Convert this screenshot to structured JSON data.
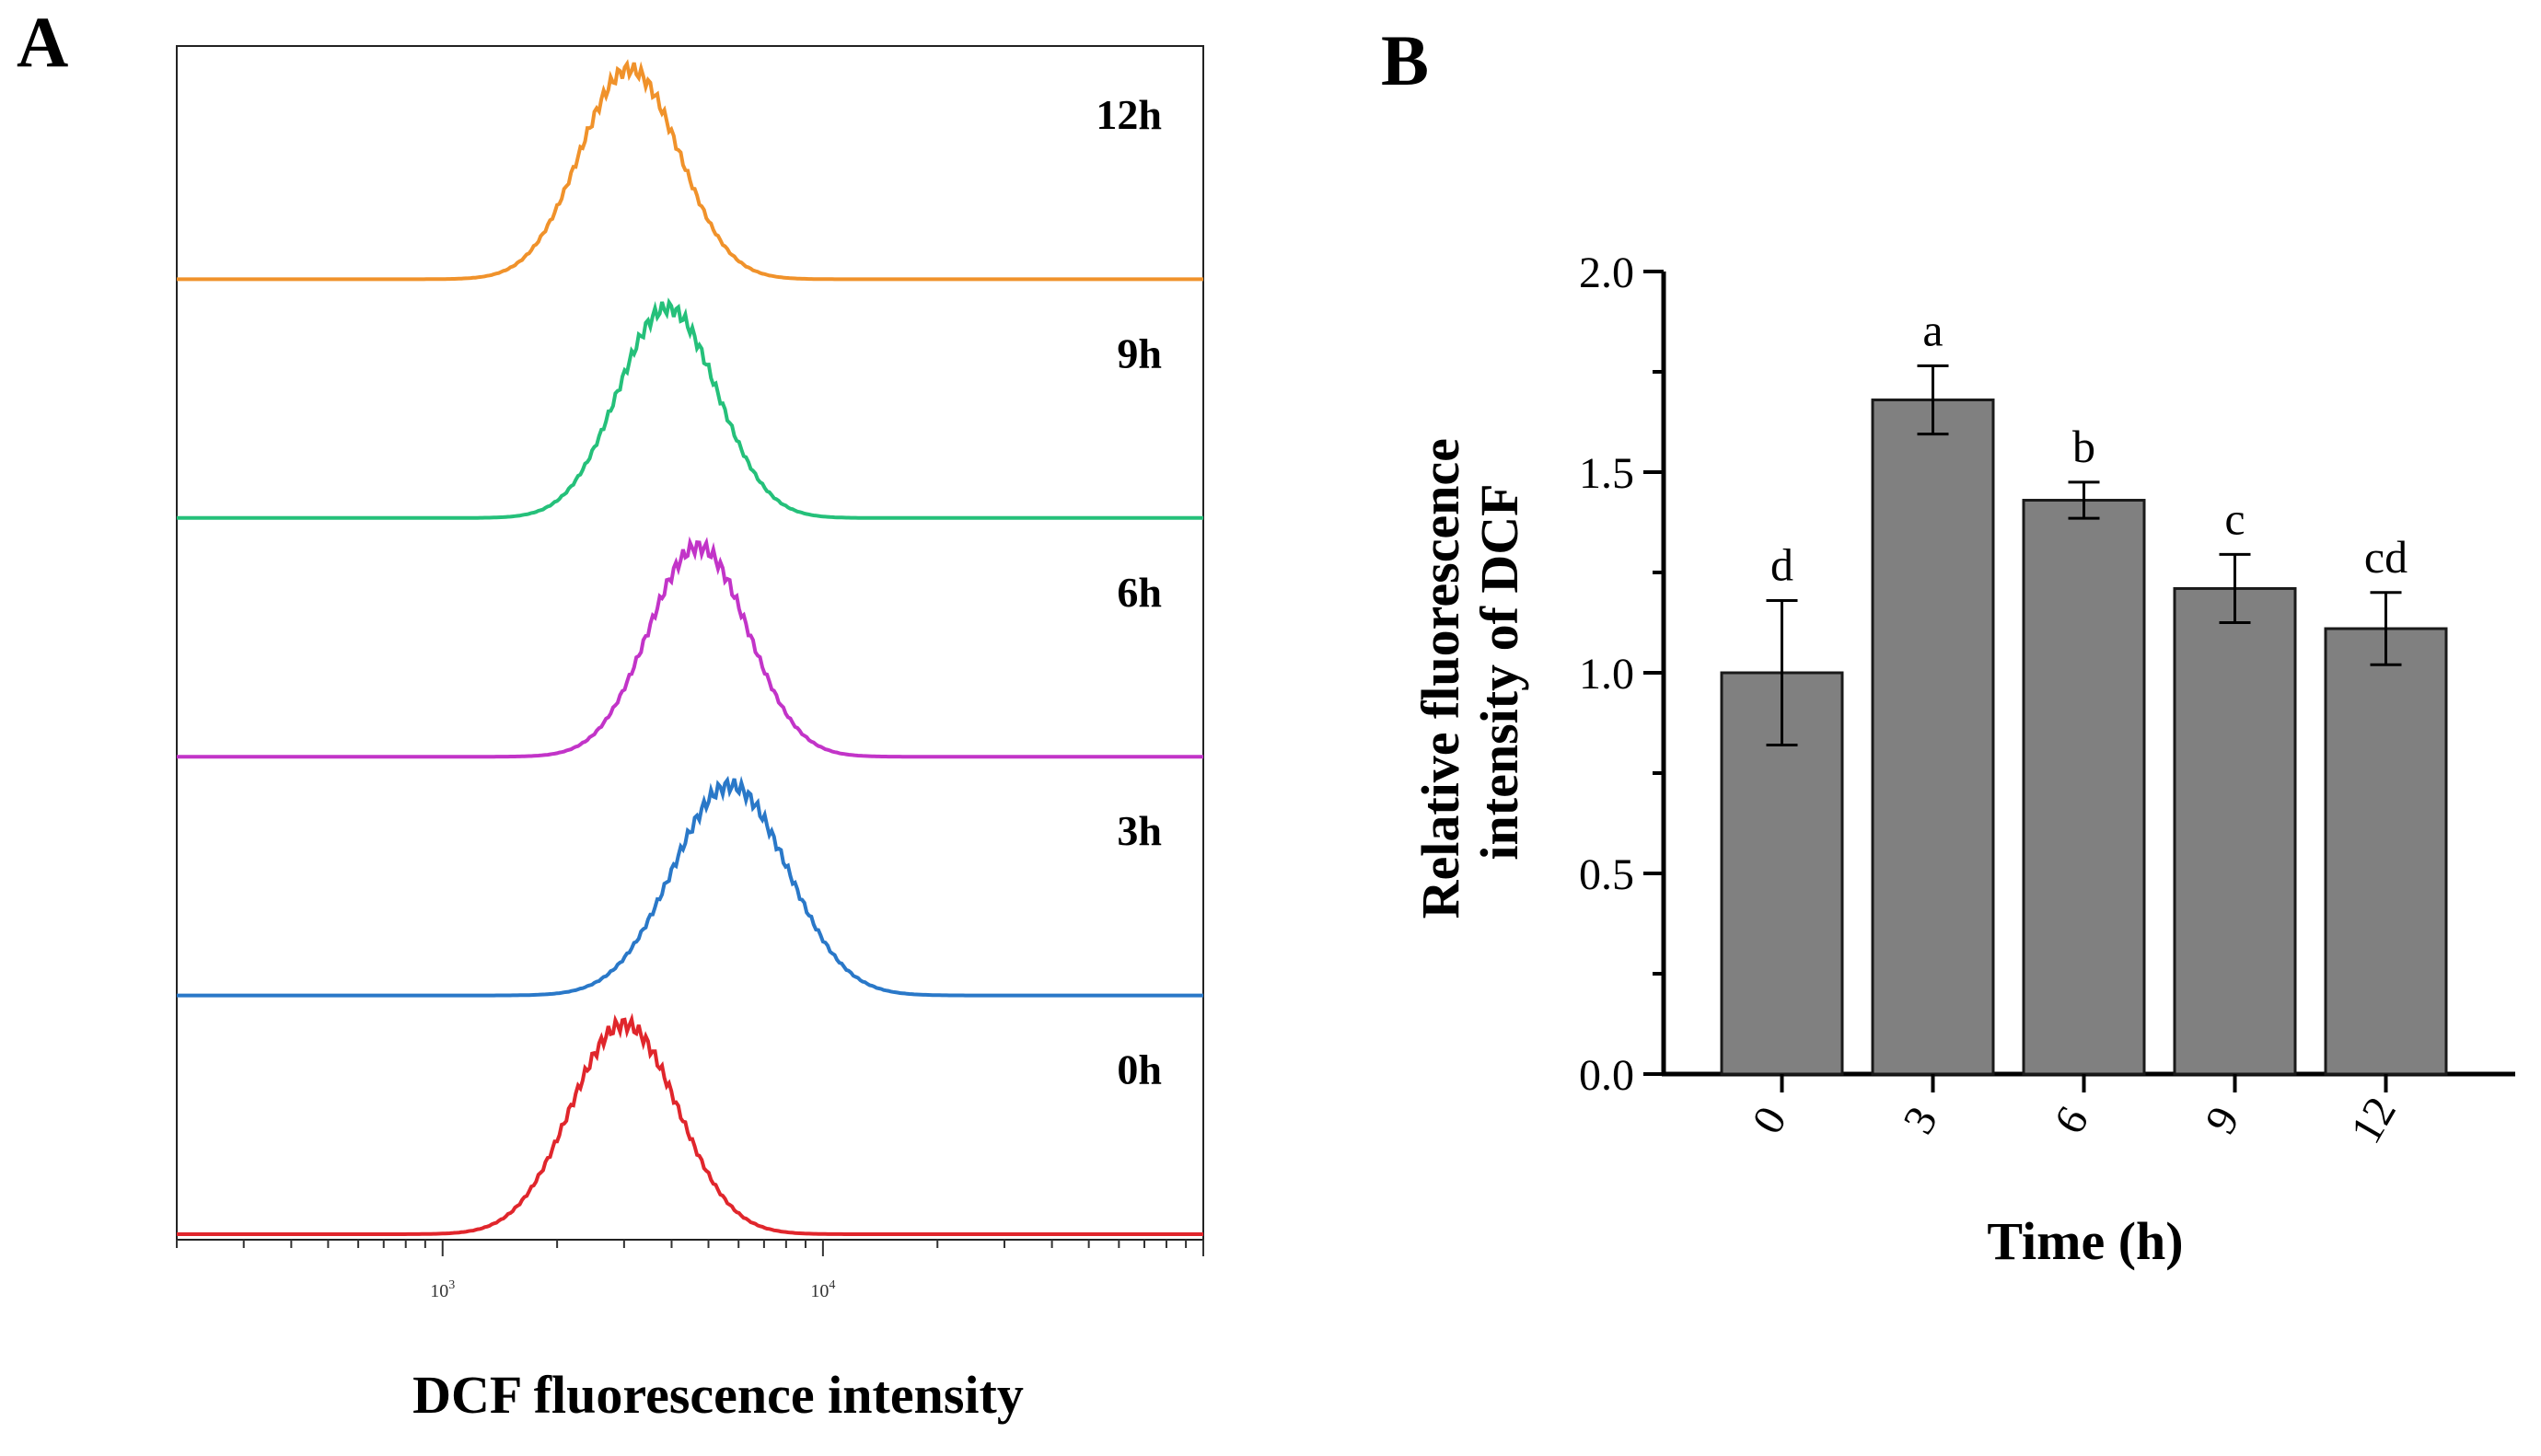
{
  "panels": {
    "a_label": "A",
    "b_label": "B"
  },
  "chart_data": [
    {
      "type": "line",
      "panel": "A",
      "title": "",
      "xlabel": "DCF fluorescence intensity",
      "ylabel": "",
      "xscale": "log",
      "xlim": [
        200,
        100000
      ],
      "x_tick_labels": [
        {
          "value": 1000,
          "base": "10",
          "exp": "3"
        },
        {
          "value": 10000,
          "base": "10",
          "exp": "4"
        }
      ],
      "series": [
        {
          "name": "12h",
          "color": "#f0922b",
          "peak_x": 3100,
          "sigma_log10": 0.13
        },
        {
          "name": "9h",
          "color": "#25c07a",
          "peak_x": 3900,
          "sigma_log10": 0.13
        },
        {
          "name": "6h",
          "color": "#c234c8",
          "peak_x": 4700,
          "sigma_log10": 0.13
        },
        {
          "name": "3h",
          "color": "#2a78c8",
          "peak_x": 5700,
          "sigma_log10": 0.15
        },
        {
          "name": "0h",
          "color": "#e0262c",
          "peak_x": 3000,
          "sigma_log10": 0.14
        }
      ]
    },
    {
      "type": "bar",
      "panel": "B",
      "title": "",
      "xlabel": "Time (h)",
      "ylabel": "Relative fluorescence intensity of DCF",
      "ylim": [
        0,
        2.0
      ],
      "y_ticks": [
        "0.0",
        "0.5",
        "1.0",
        "1.5",
        "2.0"
      ],
      "categories": [
        "0",
        "3",
        "6",
        "9",
        "12"
      ],
      "values": [
        1.0,
        1.68,
        1.43,
        1.21,
        1.11
      ],
      "errors": [
        0.18,
        0.085,
        0.045,
        0.085,
        0.09
      ],
      "significance": [
        "d",
        "a",
        "b",
        "c",
        "cd"
      ],
      "bar_color": "#808080"
    }
  ]
}
